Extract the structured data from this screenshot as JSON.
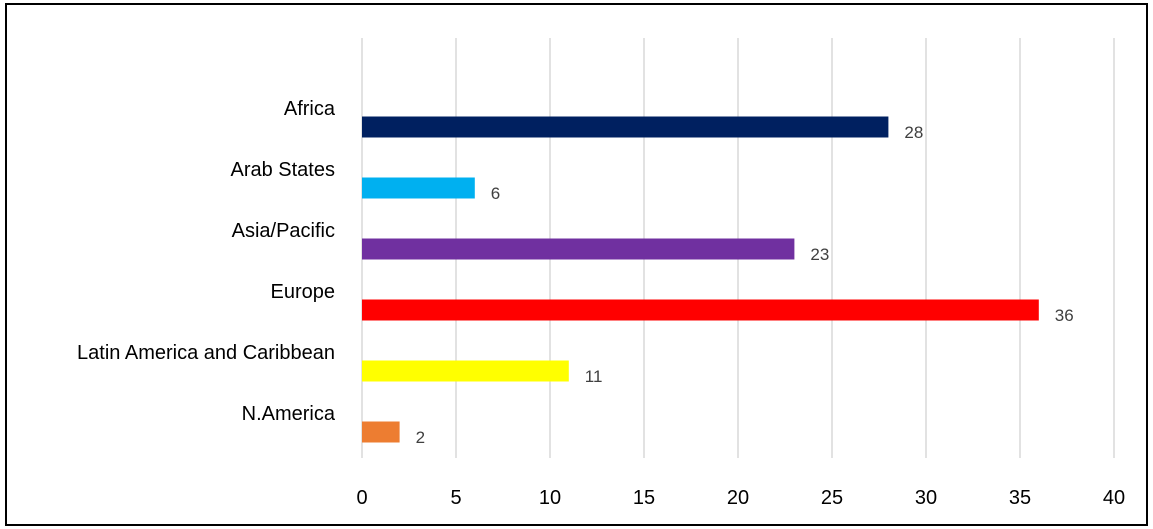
{
  "chart_data": {
    "type": "bar",
    "orientation": "horizontal",
    "categories": [
      "Africa",
      "Arab States",
      "Asia/Pacific",
      "Europe",
      "Latin America and Caribbean",
      "N.America"
    ],
    "values": [
      28,
      6,
      23,
      36,
      11,
      2
    ],
    "colors": [
      "#002060",
      "#00b0f0",
      "#7030a0",
      "#ff0000",
      "#ffff00",
      "#ed7d31"
    ],
    "xlim": [
      0,
      40
    ],
    "xticks": [
      0,
      5,
      10,
      15,
      20,
      25,
      30,
      35,
      40
    ],
    "grid": true,
    "legend": "none",
    "title": "",
    "xlabel": "",
    "ylabel": ""
  }
}
